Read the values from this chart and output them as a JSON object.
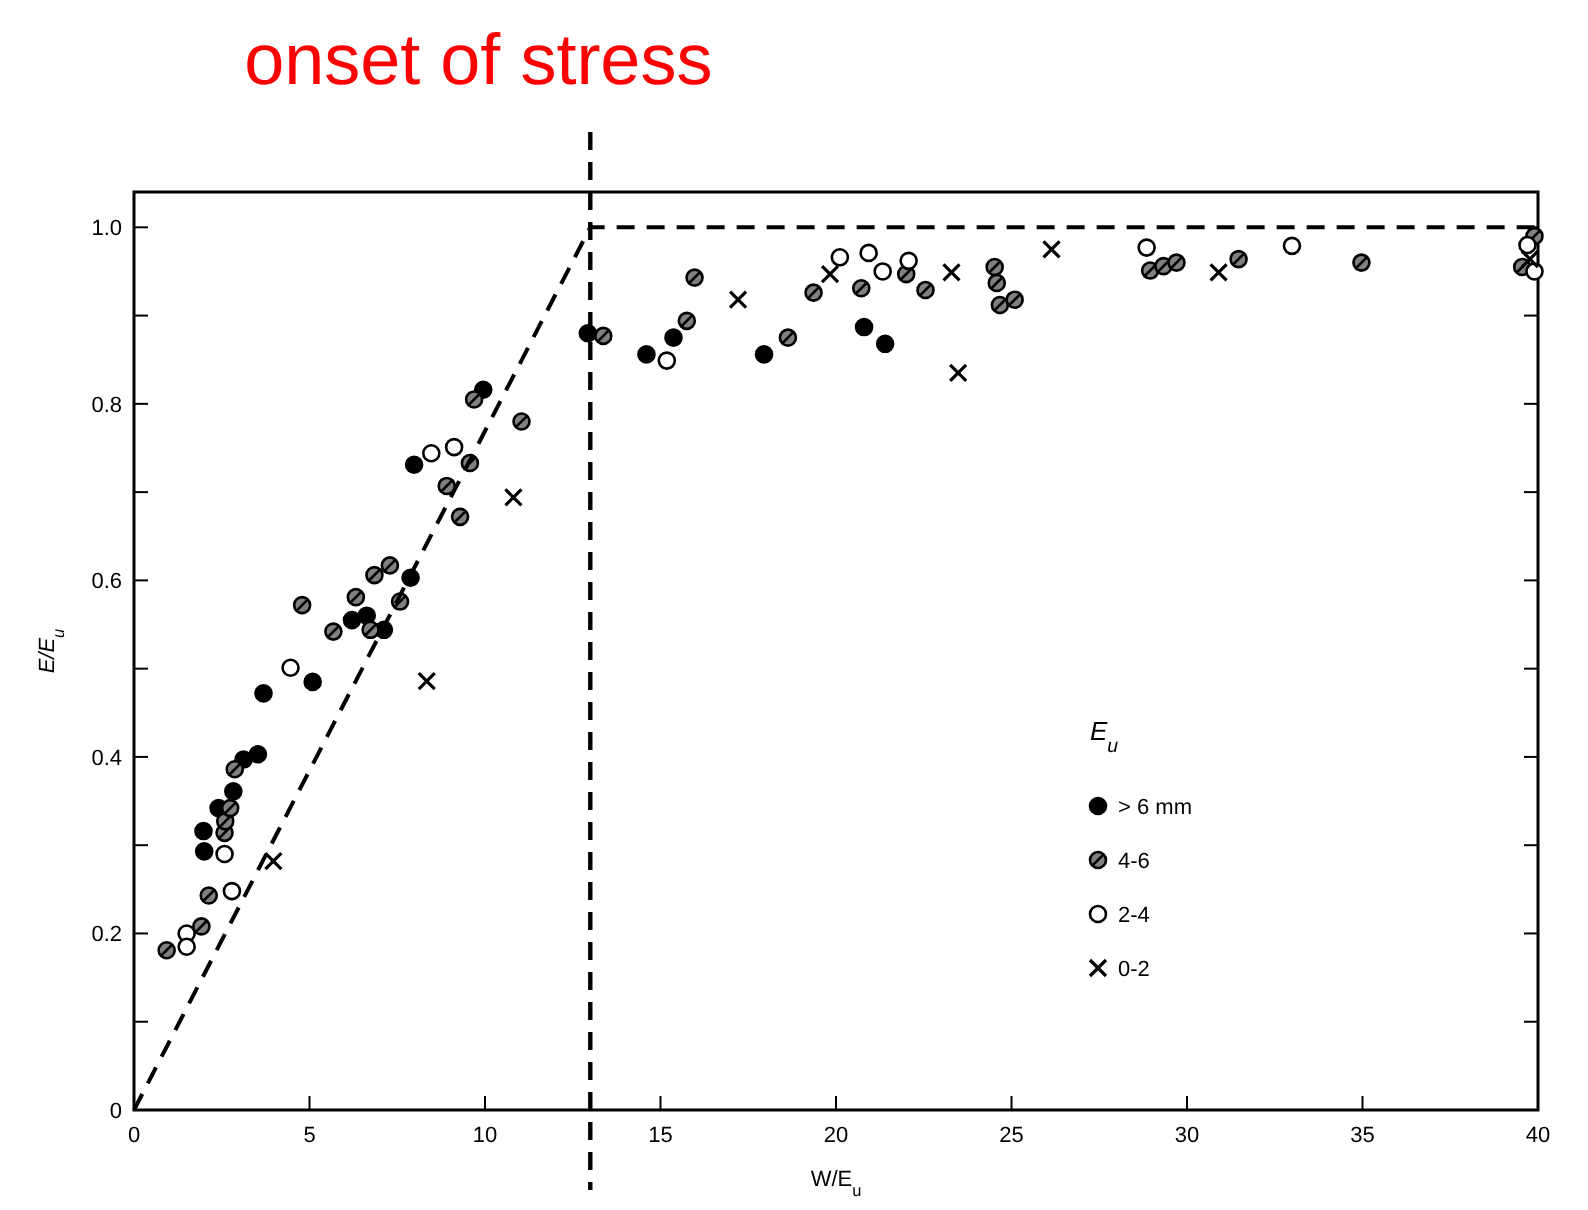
{
  "chart_data": {
    "type": "scatter",
    "xlabel": "W/E$_{u}$",
    "ylabel": "E/E$_{u}$",
    "legend_title": "E$_{u}$",
    "legend": "bottom right",
    "grid": false,
    "xlim": [
      0,
      40
    ],
    "xticks": [
      0,
      5,
      10,
      15,
      20,
      25,
      30,
      35,
      40
    ],
    "ylim": [
      0,
      1.04
    ],
    "yticks": [
      0,
      {
        "value": 0.1,
        "label": null
      },
      {
        "value": 0.2,
        "label": "0.2"
      },
      {
        "value": 0.3,
        "label": null
      },
      {
        "value": 0.4,
        "label": "0.4"
      },
      {
        "value": 0.5,
        "label": null
      },
      {
        "value": 0.6,
        "label": "0.6"
      },
      {
        "value": 0.7,
        "label": null
      },
      {
        "value": 0.8,
        "label": "0.8"
      },
      {
        "value": 0.9,
        "label": null
      },
      {
        "value": 1,
        "label": "1.0"
      }
    ],
    "ref_lines": [
      {
        "axis": "x",
        "value": 13,
        "label": "onset of stress",
        "line_style": "dashed"
      }
    ],
    "series": [
      {
        "name": "> 6 mm",
        "marker": "circle",
        "color": "#000000",
        "x": [
          1.98,
          2.0,
          2.41,
          2.83,
          3.12,
          3.53,
          3.69,
          5.09,
          6.21,
          6.63,
          7.12,
          7.88,
          7.98,
          9.95,
          12.93,
          14.6,
          15.37,
          17.95,
          20.8,
          21.4
        ],
        "values": [
          0.316,
          0.293,
          0.342,
          0.361,
          0.397,
          0.403,
          0.472,
          0.485,
          0.555,
          0.56,
          0.544,
          0.603,
          0.731,
          0.816,
          0.88,
          0.856,
          0.875,
          0.856,
          0.887,
          0.868
        ]
      },
      {
        "name": "4-6",
        "marker": "circle",
        "color": "#808080",
        "x": [
          0.93,
          1.92,
          2.13,
          2.58,
          2.6,
          2.74,
          2.87,
          4.79,
          5.68,
          6.32,
          6.74,
          6.85,
          7.29,
          7.58,
          8.91,
          9.29,
          9.57,
          9.69,
          11.04,
          13.37,
          15.75,
          15.97,
          18.63,
          19.36,
          20.72,
          22.0,
          22.55,
          24.52,
          24.58,
          24.67,
          25.09,
          28.95,
          29.33,
          29.7,
          31.47,
          34.97,
          39.9,
          39.55
        ],
        "values": [
          0.181,
          0.208,
          0.243,
          0.314,
          0.327,
          0.342,
          0.386,
          0.572,
          0.542,
          0.581,
          0.544,
          0.606,
          0.617,
          0.576,
          0.707,
          0.672,
          0.733,
          0.805,
          0.78,
          0.877,
          0.894,
          0.943,
          0.875,
          0.926,
          0.931,
          0.947,
          0.929,
          0.955,
          0.937,
          0.912,
          0.918,
          0.951,
          0.956,
          0.96,
          0.964,
          0.96,
          0.99,
          0.955
        ]
      },
      {
        "name": "2-4",
        "marker": "circle",
        "color": "#ffffff",
        "x": [
          1.5,
          1.5,
          2.79,
          2.58,
          4.46,
          8.47,
          9.12,
          15.18,
          20.11,
          20.93,
          21.33,
          22.07,
          28.85,
          32.99,
          39.9,
          39.7
        ],
        "values": [
          0.2,
          0.185,
          0.248,
          0.29,
          0.501,
          0.744,
          0.751,
          0.849,
          0.966,
          0.971,
          0.95,
          0.962,
          0.977,
          0.979,
          0.95,
          0.98
        ]
      },
      {
        "name": "0-2",
        "marker": "cross",
        "color": "#000000",
        "x": [
          3.97,
          8.34,
          10.81,
          17.21,
          19.83,
          23.29,
          23.48,
          26.14,
          30.9,
          39.77
        ],
        "values": [
          0.282,
          0.486,
          0.694,
          0.918,
          0.947,
          0.949,
          0.835,
          0.975,
          0.949,
          0.964
        ]
      },
      {
        "type": "line",
        "line_style": "dashed",
        "marker": "none",
        "color": "#000000",
        "x": [
          0,
          13,
          40
        ],
        "values": [
          0,
          1,
          1
        ]
      }
    ]
  }
}
